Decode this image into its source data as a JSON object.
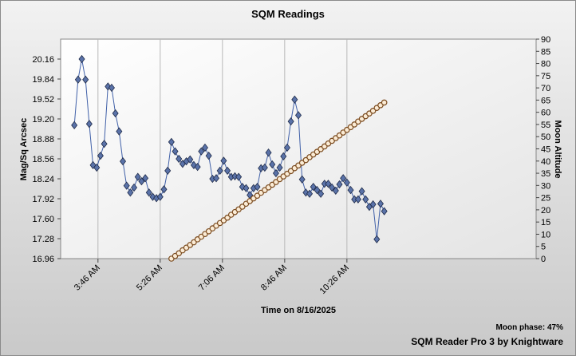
{
  "chart_data": {
    "type": "line",
    "title": "SQM Readings",
    "x_label": "Time on 8/16/2025",
    "y_label": "Mag/Sq Arcsec",
    "y2_label": "Moon Altitude",
    "annotations": [
      "Moon phase: 47%",
      "SQM Reader Pro 3 by Knightware"
    ],
    "x": [
      "03:08",
      "03:14",
      "03:20",
      "03:26",
      "03:32",
      "03:38",
      "03:44",
      "03:50",
      "03:56",
      "04:02",
      "04:08",
      "04:14",
      "04:20",
      "04:26",
      "04:32",
      "04:38",
      "04:44",
      "04:50",
      "04:56",
      "05:02",
      "05:08",
      "05:14",
      "05:20",
      "05:26",
      "05:32",
      "05:38",
      "05:44",
      "05:50",
      "05:56",
      "06:02",
      "06:08",
      "06:14",
      "06:20",
      "06:26",
      "06:32",
      "06:38",
      "06:44",
      "06:50",
      "06:56",
      "07:02",
      "07:08",
      "07:14",
      "07:20",
      "07:26",
      "07:32",
      "07:38",
      "07:44",
      "07:50",
      "07:56",
      "08:02",
      "08:08",
      "08:14",
      "08:20",
      "08:26",
      "08:32",
      "08:38",
      "08:44",
      "08:50",
      "08:56",
      "09:02",
      "09:08",
      "09:14",
      "09:20",
      "09:26",
      "09:32",
      "09:38",
      "09:44",
      "09:50",
      "09:56",
      "10:02",
      "10:08",
      "10:14",
      "10:20",
      "10:26",
      "10:32",
      "10:38",
      "10:44",
      "10:50",
      "10:56",
      "11:02",
      "11:08",
      "11:14",
      "11:20",
      "11:26"
    ],
    "series": [
      {
        "name": "Mag/Sq Arcsec",
        "color": "#5a72a8",
        "marker": "diamond",
        "values": [
          19.1,
          19.83,
          20.16,
          19.83,
          19.12,
          18.46,
          18.42,
          18.61,
          18.8,
          19.72,
          19.7,
          19.29,
          19.0,
          18.52,
          18.13,
          18.02,
          18.1,
          18.27,
          18.2,
          18.25,
          18.02,
          17.95,
          17.93,
          17.95,
          18.07,
          18.37,
          18.83,
          18.68,
          18.56,
          18.48,
          18.52,
          18.55,
          18.46,
          18.43,
          18.68,
          18.74,
          18.61,
          18.24,
          18.25,
          18.37,
          18.53,
          18.37,
          18.27,
          18.28,
          18.27,
          18.11,
          18.09,
          17.98,
          18.09,
          18.11,
          18.41,
          18.42,
          18.66,
          18.47,
          18.33,
          18.42,
          18.6,
          18.74,
          19.16,
          19.51,
          19.26,
          18.23,
          18.02,
          18.0,
          18.11,
          18.06,
          18.0,
          18.16,
          18.16,
          18.1,
          18.05,
          18.15,
          18.25,
          18.18,
          18.06,
          17.91,
          17.91,
          18.04,
          17.91,
          17.79,
          17.83,
          17.27,
          17.84,
          17.72
        ]
      },
      {
        "name": "Moon Altitude",
        "color": "#7a4a1e",
        "marker": "circle",
        "axis": "y2",
        "values": [
          null,
          null,
          null,
          null,
          null,
          null,
          null,
          null,
          null,
          null,
          null,
          null,
          null,
          null,
          null,
          null,
          null,
          null,
          null,
          null,
          null,
          null,
          null,
          null,
          null,
          null,
          0,
          1.1,
          2.2,
          3.4,
          4.5,
          5.6,
          6.7,
          7.9,
          9.0,
          10.1,
          11.2,
          12.4,
          13.5,
          14.6,
          15.7,
          16.8,
          18.0,
          19.1,
          20.2,
          21.3,
          22.5,
          23.6,
          24.7,
          25.8,
          27.0,
          28.1,
          29.2,
          30.3,
          31.4,
          32.6,
          33.7,
          34.8,
          35.9,
          37.1,
          38.2,
          39.3,
          40.4,
          41.6,
          42.7,
          43.8,
          44.9,
          46.0,
          47.2,
          48.3,
          49.4,
          50.5,
          51.7,
          52.8,
          53.9,
          55.0,
          56.2,
          57.3,
          58.4,
          59.5,
          60.6,
          61.8,
          62.9,
          64.0
        ]
      }
    ],
    "xlim": [
      "02:46",
      "15:30"
    ],
    "xticks": [
      {
        "value": "03:46",
        "label": "3:46 AM"
      },
      {
        "value": "05:26",
        "label": "5:26 AM"
      },
      {
        "value": "07:06",
        "label": "7:06 AM"
      },
      {
        "value": "08:46",
        "label": "8:46 AM"
      },
      {
        "value": "10:26",
        "label": "10:26 AM"
      }
    ],
    "ylim": [
      16.96,
      20.48
    ],
    "yticks": [
      16.96,
      17.28,
      {
        "value": 17.6,
        "label": "17.60"
      },
      17.92,
      18.24,
      18.56,
      18.88,
      {
        "value": 19.2,
        "label": "19.20"
      },
      19.52,
      19.84,
      20.16
    ],
    "y2lim": [
      0,
      90
    ],
    "y2ticks": [
      0,
      5,
      10,
      15,
      20,
      25,
      30,
      35,
      40,
      45,
      50,
      55,
      60,
      65,
      70,
      75,
      80,
      85,
      90
    ],
    "grid": "x"
  }
}
